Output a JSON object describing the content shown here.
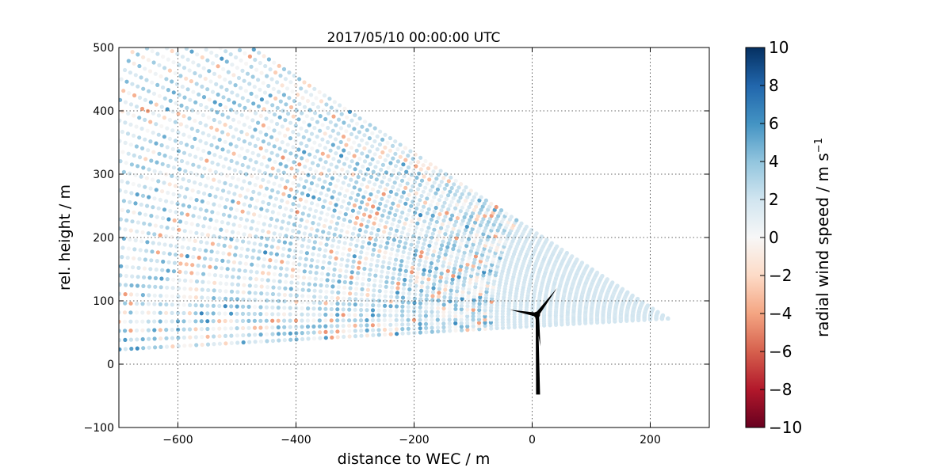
{
  "chart_data": {
    "type": "scatter",
    "title": "2017/05/10 00:00:00 UTC",
    "xlabel": "distance to WEC / m",
    "ylabel": "rel. height / m",
    "xlim": [
      -700,
      300
    ],
    "ylim": [
      -100,
      500
    ],
    "xticks": [
      -600,
      -400,
      -200,
      0,
      200
    ],
    "yticks": [
      -100,
      0,
      100,
      200,
      300,
      400,
      500
    ],
    "xtick_labels": [
      "−600",
      "−400",
      "−200",
      "0",
      "200"
    ],
    "ytick_labels": [
      "−100",
      "0",
      "100",
      "200",
      "300",
      "400",
      "500"
    ],
    "grid": true,
    "scan": {
      "origin": [
        230,
        72
      ],
      "range_min": 0,
      "range_max": 1000,
      "range_step": 10,
      "angle_min_deg": -3,
      "angle_max_deg": 32,
      "angle_step_deg": 0.9,
      "near_range_limit": 300,
      "near_speed": 1.8,
      "far_speed_mean": 2.0
    },
    "turbine": {
      "tower_base": [
        10,
        -48
      ],
      "hub": [
        8,
        78
      ],
      "blade_tips": [
        [
          42,
          120
        ],
        [
          -38,
          86
        ],
        [
          14,
          28
        ]
      ],
      "color": "#000000"
    },
    "colorbar": {
      "label": "radial wind speed / m s",
      "label_superscript": "−1",
      "vmin": -10,
      "vmax": 10,
      "ticks": [
        10,
        8,
        6,
        4,
        2,
        0,
        -2,
        -4,
        -6,
        -8,
        -10
      ],
      "tick_labels": [
        "10",
        "8",
        "6",
        "4",
        "2",
        "0",
        "−2",
        "−4",
        "−6",
        "−8",
        "−10"
      ],
      "colormap": [
        "#67001f",
        "#b2182b",
        "#d6604d",
        "#f4a582",
        "#fddbc7",
        "#f7f7f7",
        "#d1e5f0",
        "#92c5de",
        "#4393c3",
        "#2166ac",
        "#053061"
      ]
    }
  }
}
